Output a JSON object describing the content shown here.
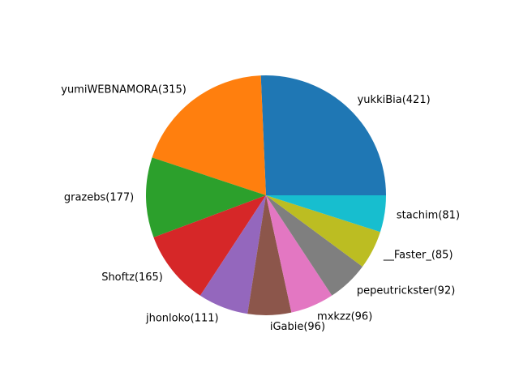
{
  "chart_data": {
    "type": "pie",
    "start_angle": 0,
    "direction": "counterclockwise",
    "slices": [
      {
        "label": "yukkiBia(421)",
        "value": 421,
        "color": "#1f77b4"
      },
      {
        "label": "yumiWEBNAMORA(315)",
        "value": 315,
        "color": "#ff7f0e"
      },
      {
        "label": "grazebs(177)",
        "value": 177,
        "color": "#2ca02c"
      },
      {
        "label": "Shoftz(165)",
        "value": 165,
        "color": "#d62728"
      },
      {
        "label": "jhonloko(111)",
        "value": 111,
        "color": "#9467bd"
      },
      {
        "label": "iGabie(96)",
        "value": 96,
        "color": "#8c564b"
      },
      {
        "label": "mxkzz(96)",
        "value": 96,
        "color": "#e377c2"
      },
      {
        "label": "pepeutrickster(92)",
        "value": 92,
        "color": "#7f7f7f"
      },
      {
        "label": "__Faster_(85)",
        "value": 85,
        "color": "#bcbd22"
      },
      {
        "label": "stachim(81)",
        "value": 81,
        "color": "#17becf"
      }
    ]
  }
}
